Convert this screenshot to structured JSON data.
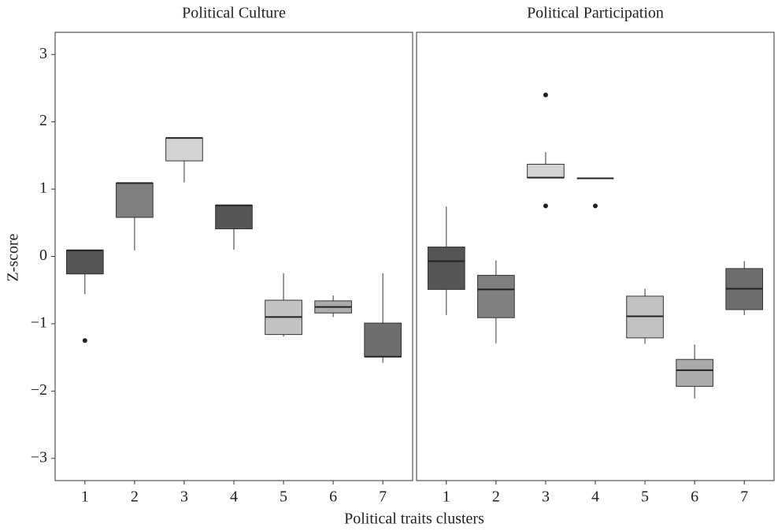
{
  "axis_labels": {
    "x": "Political traits clusters",
    "y": "Z-score"
  },
  "chart_data": [
    {
      "type": "box",
      "title": "Political Culture",
      "categories": [
        "1",
        "2",
        "3",
        "4",
        "5",
        "6",
        "7"
      ],
      "ylim": [
        -3.33,
        3.33
      ],
      "yticks": [
        {
          "value": -3,
          "label": "−3"
        },
        {
          "value": -2,
          "label": "−2"
        },
        {
          "value": -1,
          "label": "−1"
        },
        0,
        1,
        2,
        3
      ],
      "boxes": [
        {
          "low": -0.56,
          "q1": -0.26,
          "median": 0.09,
          "q3": 0.09,
          "high": 0.09,
          "outliers": [
            -1.25
          ],
          "color": "#555555"
        },
        {
          "low": 0.09,
          "q1": 0.58,
          "median": 1.09,
          "q3": 1.09,
          "high": 1.09,
          "outliers": [],
          "color": "#808080"
        },
        {
          "low": 1.1,
          "q1": 1.42,
          "median": 1.76,
          "q3": 1.76,
          "high": 1.76,
          "outliers": [],
          "color": "#d3d3d3"
        },
        {
          "low": 0.1,
          "q1": 0.41,
          "median": 0.76,
          "q3": 0.76,
          "high": 0.76,
          "outliers": [],
          "color": "#555555"
        },
        {
          "low": -1.19,
          "q1": -1.16,
          "median": -0.9,
          "q3": -0.65,
          "high": -0.25,
          "outliers": [],
          "color": "#c2c2c2"
        },
        {
          "low": -0.9,
          "q1": -0.84,
          "median": -0.75,
          "q3": -0.66,
          "high": -0.58,
          "outliers": [],
          "color": "#ababab"
        },
        {
          "low": -1.58,
          "q1": -1.49,
          "median": -1.49,
          "q3": -0.99,
          "high": -0.25,
          "outliers": [],
          "color": "#6e6e6e"
        }
      ]
    },
    {
      "type": "box",
      "title": "Political Participation",
      "categories": [
        "1",
        "2",
        "3",
        "4",
        "5",
        "6",
        "7"
      ],
      "ylim": [
        -3.33,
        3.33
      ],
      "boxes": [
        {
          "low": -0.87,
          "q1": -0.49,
          "median": -0.07,
          "q3": 0.14,
          "high": 0.74,
          "outliers": [],
          "color": "#555555"
        },
        {
          "low": -1.29,
          "q1": -0.91,
          "median": -0.49,
          "q3": -0.28,
          "high": -0.06,
          "outliers": [],
          "color": "#808080"
        },
        {
          "low": 1.17,
          "q1": 1.17,
          "median": 1.17,
          "q3": 1.37,
          "high": 1.55,
          "outliers": [
            2.4,
            0.75
          ],
          "color": "#d3d3d3"
        },
        {
          "low": 1.16,
          "q1": 1.16,
          "median": 1.16,
          "q3": 1.16,
          "high": 1.16,
          "outliers": [
            0.75
          ],
          "color": "#555555"
        },
        {
          "low": -1.3,
          "q1": -1.21,
          "median": -0.89,
          "q3": -0.59,
          "high": -0.48,
          "outliers": [],
          "color": "#c2c2c2"
        },
        {
          "low": -2.11,
          "q1": -1.93,
          "median": -1.69,
          "q3": -1.53,
          "high": -1.31,
          "outliers": [],
          "color": "#ababab"
        },
        {
          "low": -0.87,
          "q1": -0.79,
          "median": -0.48,
          "q3": -0.18,
          "high": -0.07,
          "outliers": [],
          "color": "#6e6e6e"
        }
      ]
    }
  ]
}
